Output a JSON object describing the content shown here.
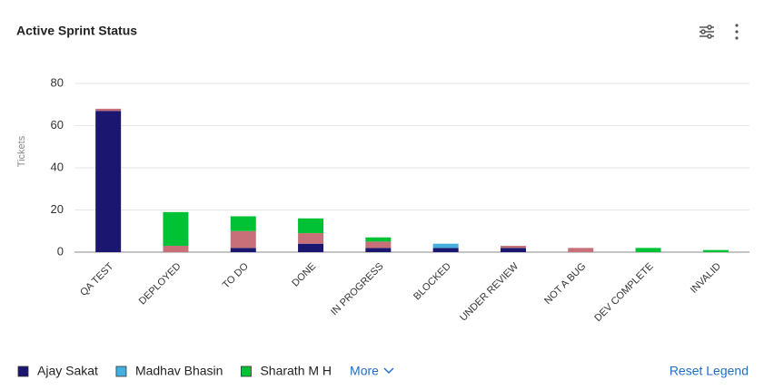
{
  "chart_data": {
    "type": "stacked-bar",
    "title": "Active Sprint Status",
    "y_label": "Tickets",
    "categories": [
      "QA TEST",
      "DEPLOYED",
      "TO DO",
      "DONE",
      "IN PROGRESS",
      "BLOCKED",
      "UNDER REVIEW",
      "NOT A BUG",
      "DEV COMPLETE",
      "INVALID"
    ],
    "series": [
      {
        "name": "Ajay Sakat",
        "color": "#1b1670",
        "values": [
          67,
          0,
          2,
          4,
          2,
          2,
          2,
          0,
          0,
          0
        ]
      },
      {
        "name": "Madhav Bhasin",
        "color": "#45b0e0",
        "values": [
          0,
          0,
          0,
          0,
          0,
          2,
          0,
          0,
          0,
          0
        ]
      },
      {
        "color": "#c8707a",
        "values": [
          1,
          3,
          8,
          5,
          3,
          0,
          1,
          2,
          0,
          0
        ]
      },
      {
        "name": "Sharath M H",
        "color": "#00c234",
        "values": [
          0,
          16,
          7,
          7,
          2,
          0,
          0,
          0,
          2,
          1
        ]
      }
    ],
    "ylim": [
      0,
      80
    ],
    "yticks": [
      0,
      20,
      40,
      60,
      80
    ],
    "grid": true,
    "legend_more": "More",
    "legend_reset": "Reset Legend"
  }
}
